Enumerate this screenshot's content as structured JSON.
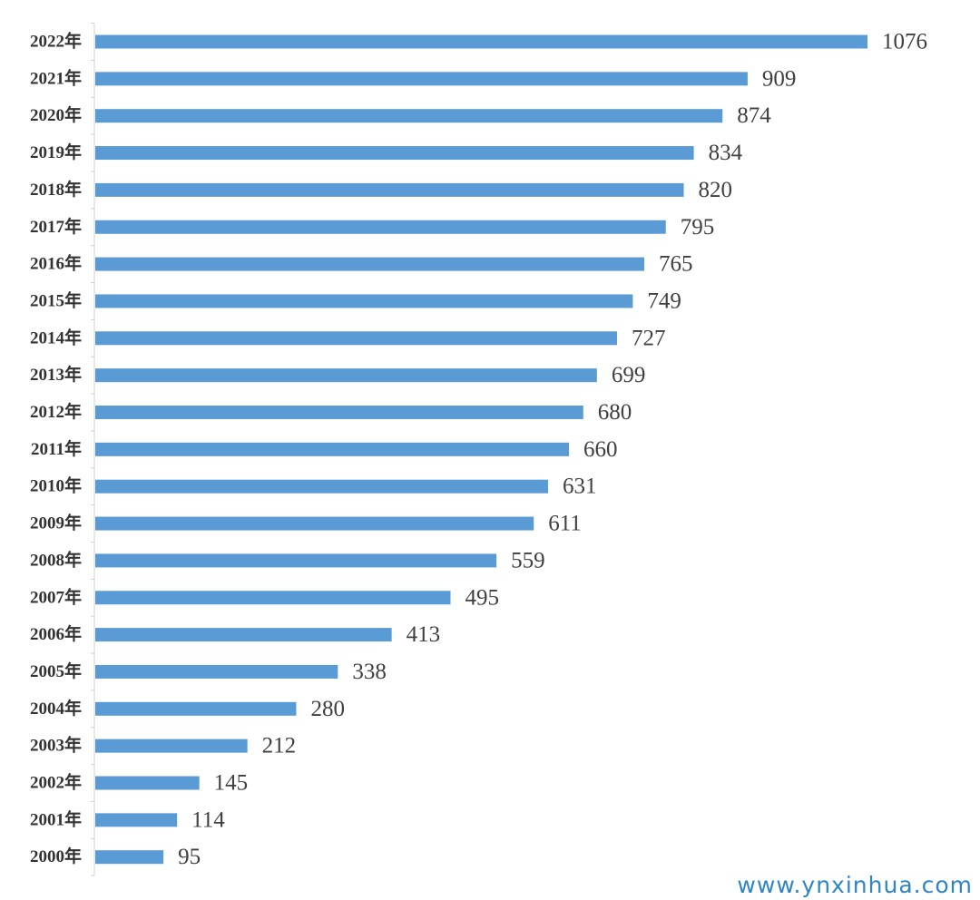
{
  "chart_data": {
    "type": "bar",
    "orientation": "horizontal",
    "categories": [
      "2022年",
      "2021年",
      "2020年",
      "2019年",
      "2018年",
      "2017年",
      "2016年",
      "2015年",
      "2014年",
      "2013年",
      "2012年",
      "2011年",
      "2010年",
      "2009年",
      "2008年",
      "2007年",
      "2006年",
      "2005年",
      "2004年",
      "2003年",
      "2002年",
      "2001年",
      "2000年"
    ],
    "values": [
      1076,
      909,
      874,
      834,
      820,
      795,
      765,
      749,
      727,
      699,
      680,
      660,
      631,
      611,
      559,
      495,
      413,
      338,
      280,
      212,
      145,
      114,
      95
    ],
    "title": "",
    "xlabel": "",
    "ylabel": "",
    "xlim": [
      0,
      1076
    ],
    "grid": false,
    "legend": "none",
    "bar_color": "#5b9bd5",
    "data_labels": true
  },
  "watermark": {
    "text": "www.ynxinhua.com",
    "color": "#2f86c7"
  }
}
